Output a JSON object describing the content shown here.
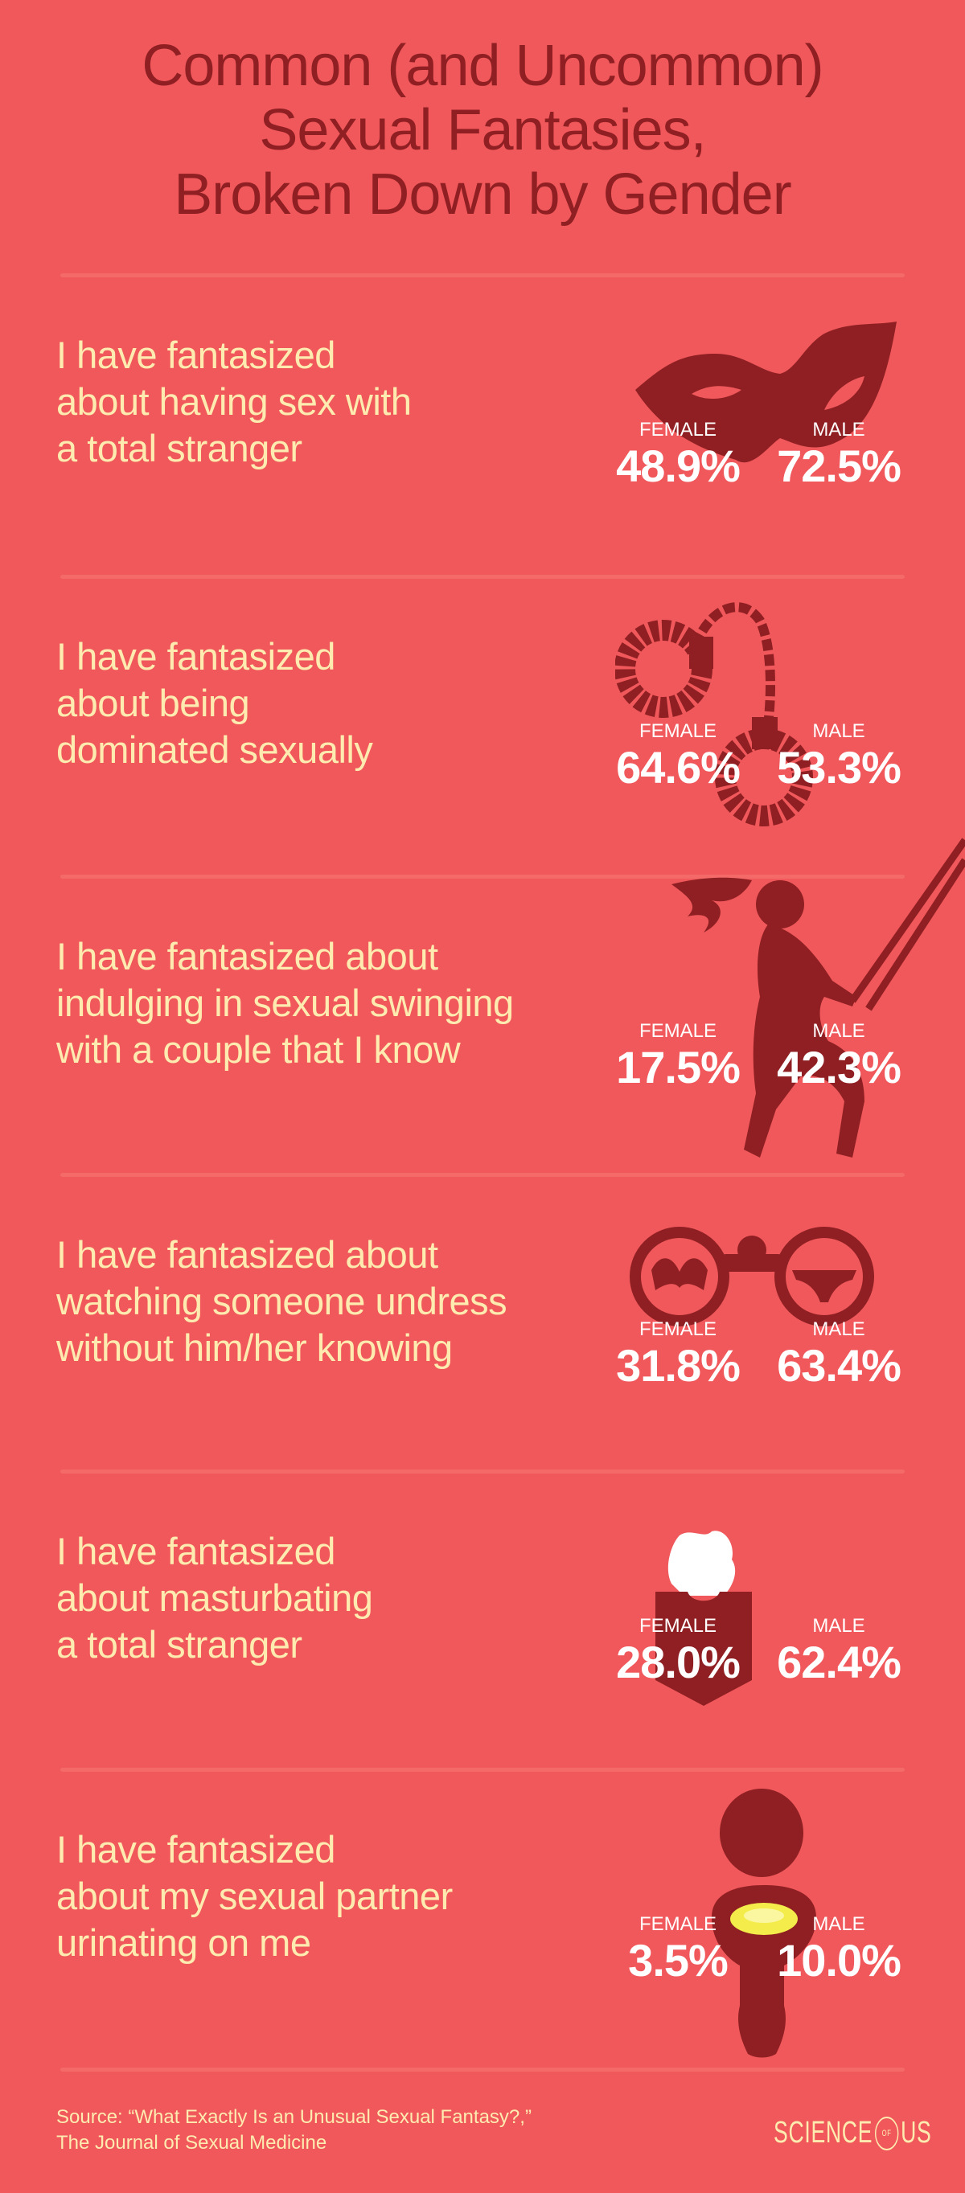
{
  "title": {
    "lines": [
      "Common (and Uncommon)",
      "Sexual Fantasies,",
      "Broken Down by Gender"
    ]
  },
  "colors": {
    "background": "#F0585B",
    "icon": "#8F1F22",
    "question_text": "#FDEBB0",
    "percent_text": "#FFFFFF"
  },
  "labels": {
    "female": "FEMALE",
    "male": "MALE"
  },
  "items": [
    {
      "question": [
        "I have fantasized",
        "about having sex with",
        "a total stranger"
      ],
      "female": "48.9%",
      "male": "72.5%",
      "icon": "mask-icon"
    },
    {
      "question": [
        "I have fantasized",
        "about being",
        "dominated sexually"
      ],
      "female": "64.6%",
      "male": "53.3%",
      "icon": "handcuffs-icon"
    },
    {
      "question": [
        "I have fantasized about",
        "indulging in sexual swinging",
        "with a couple that I know"
      ],
      "female": "17.5%",
      "male": "42.3%",
      "icon": "swing-icon"
    },
    {
      "question": [
        "I have fantasized about",
        "watching someone undress",
        "without him/her knowing"
      ],
      "female": "31.8%",
      "male": "63.4%",
      "icon": "binoculars-icon"
    },
    {
      "question": [
        "I have fantasized",
        "about masturbating",
        "a total stranger"
      ],
      "female": "28.0%",
      "male": "62.4%",
      "icon": "tissue-box-icon"
    },
    {
      "question": [
        "I have fantasized",
        "about my sexual partner",
        "urinating on me"
      ],
      "female": "3.5%",
      "male": "10.0%",
      "icon": "toilet-icon"
    }
  ],
  "source": {
    "line1": "Source: “What Exactly Is an Unusual Sexual Fantasy?,”",
    "line2": "The Journal of Sexual Medicine"
  },
  "logo": {
    "left": "SCIENCE",
    "middle": "OF",
    "right": "US"
  }
}
